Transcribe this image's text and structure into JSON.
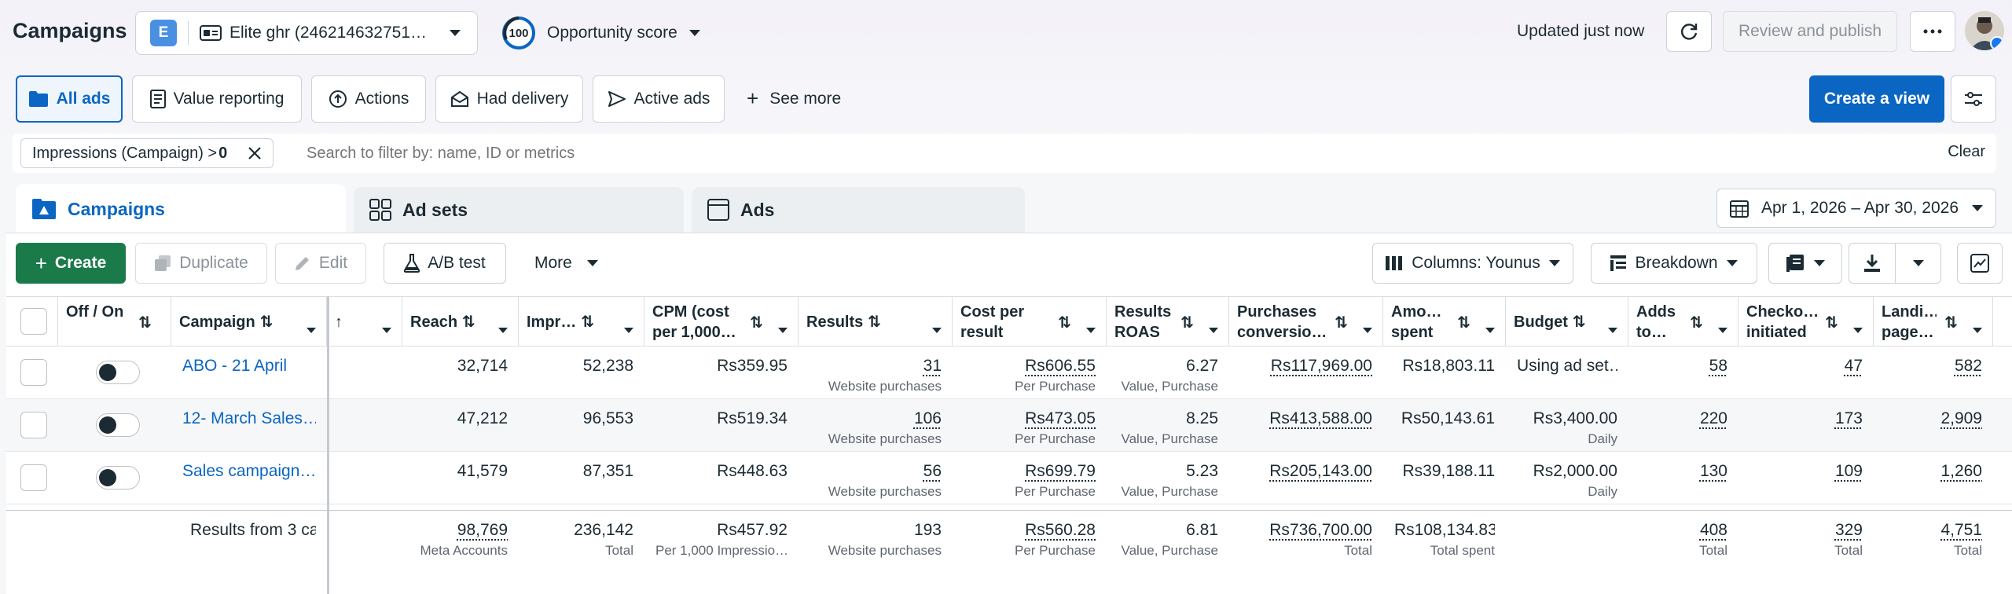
{
  "header": {
    "title": "Campaigns",
    "account_badge": "E",
    "account_name": "Elite ghr (246214632751…",
    "score_value": "100",
    "score_label": "Opportunity score",
    "updated_text": "Updated just now",
    "review_publish": "Review and publish"
  },
  "views": {
    "items": [
      "All ads",
      "Value reporting",
      "Actions",
      "Had delivery",
      "Active ads"
    ],
    "see_more": "See more",
    "create_view": "Create a view"
  },
  "filter": {
    "chip_label": "Impressions (Campaign) > ",
    "chip_value": "0",
    "search_placeholder": "Search to filter by: name, ID or metrics",
    "clear": "Clear"
  },
  "levels": {
    "campaigns": "Campaigns",
    "adsets": "Ad sets",
    "ads": "Ads",
    "date_range": "Apr 1, 2026 – Apr 30, 2026"
  },
  "toolbar": {
    "create": "Create",
    "duplicate": "Duplicate",
    "edit": "Edit",
    "ab_test": "A/B test",
    "more": "More",
    "columns": "Columns: Younus",
    "breakdown": "Breakdown"
  },
  "columns": {
    "off_on": "Off / On",
    "campaign": "Campaign",
    "reach": "Reach",
    "impressions": "Impr…",
    "cpm": "CPM (cost per 1,000…",
    "results": "Results",
    "cost_per_result": "Cost per result",
    "results_roas": "Results ROAS",
    "purchases_conv": "Purchases conversio…",
    "amount_spent": "Amo… spent",
    "budget": "Budget",
    "adds_to": "Adds to…",
    "checkouts": "Checko… initiated",
    "landing": "Landi… page…"
  },
  "rows": [
    {
      "name": "ABO - 21 April",
      "reach": "32,714",
      "impressions": "52,238",
      "cpm": "Rs359.95",
      "results": "31",
      "results_sub": "Website purchases",
      "cost": "Rs606.55",
      "cost_sub": "Per Purchase",
      "roas": "6.27",
      "roas_sub": "Value, Purchase",
      "purchases": "Rs117,969.00",
      "spent": "Rs18,803.11",
      "budget": "Using ad set…",
      "budget_sub": "",
      "adds": "58",
      "checkouts": "47",
      "landing": "582"
    },
    {
      "name": "12- March Sales…",
      "reach": "47,212",
      "impressions": "96,553",
      "cpm": "Rs519.34",
      "results": "106",
      "results_sub": "Website purchases",
      "cost": "Rs473.05",
      "cost_sub": "Per Purchase",
      "roas": "8.25",
      "roas_sub": "Value, Purchase",
      "purchases": "Rs413,588.00",
      "spent": "Rs50,143.61",
      "budget": "Rs3,400.00",
      "budget_sub": "Daily",
      "adds": "220",
      "checkouts": "173",
      "landing": "2,909"
    },
    {
      "name": "Sales campaign…",
      "reach": "41,579",
      "impressions": "87,351",
      "cpm": "Rs448.63",
      "results": "56",
      "results_sub": "Website purchases",
      "cost": "Rs699.79",
      "cost_sub": "Per Purchase",
      "roas": "5.23",
      "roas_sub": "Value, Purchase",
      "purchases": "Rs205,143.00",
      "spent": "Rs39,188.11",
      "budget": "Rs2,000.00",
      "budget_sub": "Daily",
      "adds": "130",
      "checkouts": "109",
      "landing": "1,260"
    }
  ],
  "totals": {
    "label": "Results from 3 ca",
    "reach": "98,769",
    "reach_sub": "Meta Accounts",
    "impressions": "236,142",
    "impressions_sub": "Total",
    "cpm": "Rs457.92",
    "cpm_sub": "Per 1,000 Impressio…",
    "results": "193",
    "results_sub": "Website purchases",
    "cost": "Rs560.28",
    "cost_sub": "Per Purchase",
    "roas": "6.81",
    "roas_sub": "Value, Purchase",
    "purchases": "Rs736,700.00",
    "purchases_sub": "Total",
    "spent": "Rs108,134.83",
    "spent_sub": "Total spent",
    "adds": "408",
    "adds_sub": "Total",
    "checkouts": "329",
    "checkouts_sub": "Total",
    "landing": "4,751",
    "landing_sub": "Total"
  }
}
